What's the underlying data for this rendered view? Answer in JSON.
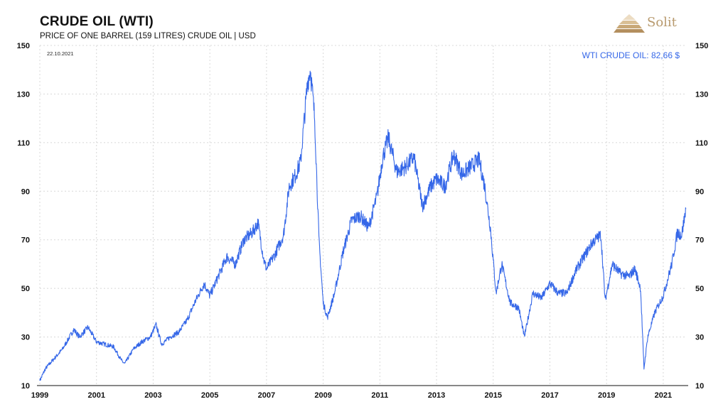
{
  "header": {
    "title": "CRUDE OIL (WTI)",
    "subtitle": "PRICE OF ONE BARREL (159 LITRES) CRUDE OIL | USD",
    "logo_text": "Solit"
  },
  "colors": {
    "line": "#3567e8",
    "grid": "#d8d8d8",
    "logo": "#b89a6e"
  },
  "chart_data": {
    "type": "line",
    "date_label": "22.10.2021",
    "annotation": "WTI CRUDE OIL: 82,66 $",
    "ylim": [
      10,
      150
    ],
    "xlim": [
      1999,
      2021.83
    ],
    "y_ticks": [
      10,
      30,
      50,
      70,
      90,
      110,
      130,
      150
    ],
    "x_ticks": [
      "1999",
      "2001",
      "2003",
      "2005",
      "2007",
      "2009",
      "2011",
      "2013",
      "2015",
      "2017",
      "2019",
      "2021"
    ],
    "grid": true,
    "series": [
      {
        "x": [
          1999.0,
          1999.2,
          1999.5,
          1999.8,
          2000.0,
          2000.2,
          2000.4,
          2000.7,
          2001.0,
          2001.3,
          2001.6,
          2001.9,
          2002.0,
          2002.3,
          2002.6,
          2002.9,
          2003.1,
          2003.3,
          2003.6,
          2003.9,
          2004.2,
          2004.5,
          2004.8,
          2005.0,
          2005.3,
          2005.6,
          2005.9,
          2006.2,
          2006.5,
          2006.7,
          2006.9,
          2007.0,
          2007.3,
          2007.6,
          2007.8,
          2008.0,
          2008.2,
          2008.45,
          2008.55,
          2008.7,
          2008.85,
          2009.0,
          2009.15,
          2009.4,
          2009.7,
          2010.0,
          2010.3,
          2010.6,
          2010.9,
          2011.1,
          2011.3,
          2011.6,
          2011.9,
          2012.2,
          2012.5,
          2012.8,
          2013.0,
          2013.3,
          2013.6,
          2013.9,
          2014.2,
          2014.5,
          2014.7,
          2014.9,
          2015.1,
          2015.3,
          2015.6,
          2015.9,
          2016.1,
          2016.4,
          2016.7,
          2017.0,
          2017.3,
          2017.6,
          2017.9,
          2018.2,
          2018.5,
          2018.8,
          2018.95,
          2019.2,
          2019.5,
          2019.8,
          2020.0,
          2020.2,
          2020.32,
          2020.45,
          2020.7,
          2021.0,
          2021.3,
          2021.5,
          2021.65,
          2021.8
        ],
        "values": [
          12,
          17,
          21,
          25,
          29,
          33,
          30,
          34,
          28,
          27,
          26,
          20,
          19,
          25,
          28,
          30,
          35,
          27,
          30,
          32,
          37,
          45,
          52,
          47,
          55,
          63,
          60,
          70,
          73,
          77,
          62,
          58,
          64,
          72,
          92,
          96,
          102,
          135,
          140,
          120,
          70,
          44,
          38,
          48,
          65,
          78,
          80,
          75,
          88,
          104,
          112,
          98,
          100,
          104,
          84,
          92,
          95,
          92,
          105,
          97,
          100,
          103,
          92,
          75,
          48,
          60,
          44,
          42,
          30,
          48,
          46,
          52,
          48,
          48,
          57,
          63,
          69,
          72,
          45,
          60,
          56,
          55,
          58,
          50,
          17,
          30,
          40,
          47,
          60,
          73,
          72,
          82.66
        ]
      }
    ]
  }
}
